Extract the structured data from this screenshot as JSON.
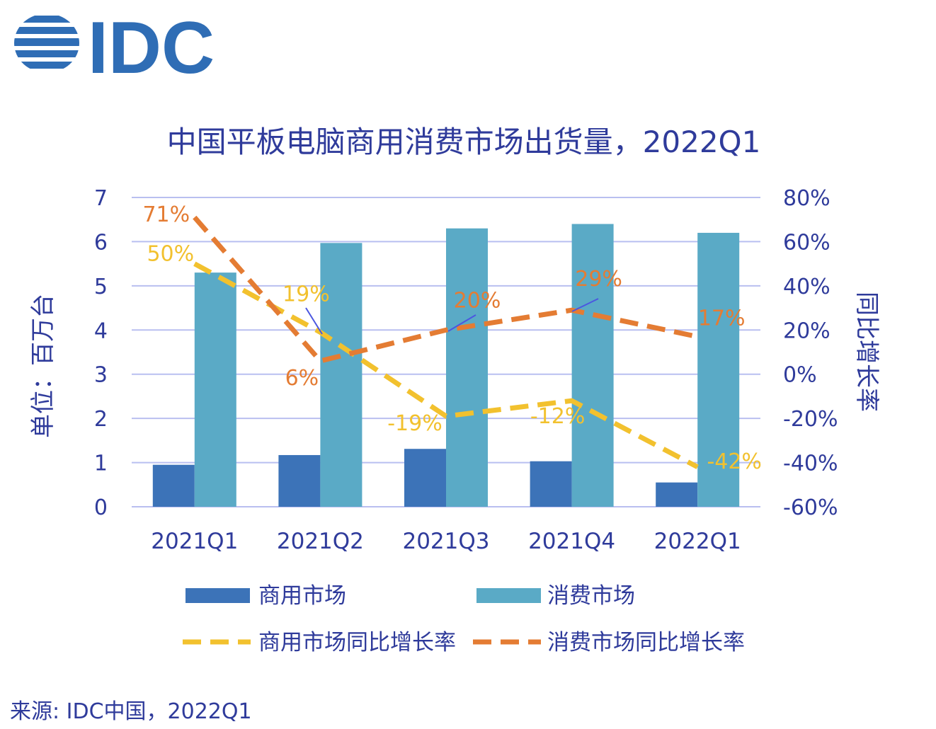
{
  "logo": {
    "text": "IDC",
    "color": "#2F6DB5"
  },
  "source": "来源: IDC中国，2022Q1",
  "colors": {
    "text": "#2F3B9B",
    "grid": "#B9BFF0",
    "commercial_bar": "#3C73B8",
    "consumer_bar": "#5AAAC6",
    "commercial_line": "#F2C12E",
    "consumer_line": "#E47C33",
    "leader": "#4B57E0"
  },
  "chart_data": {
    "type": "bar",
    "title": "中国平板电脑商用消费市场出货量，2022Q1",
    "categories": [
      "2021Q1",
      "2021Q2",
      "2021Q3",
      "2021Q4",
      "2022Q1"
    ],
    "ylabel": "单位：百万台",
    "ylim": [
      0,
      7
    ],
    "yticks": [
      "0",
      "1",
      "2",
      "3",
      "4",
      "5",
      "6",
      "7"
    ],
    "y2label": "同比增长率",
    "y2lim": [
      -60,
      80
    ],
    "y2ticks": [
      "-60%",
      "-40%",
      "-20%",
      "0%",
      "20%",
      "40%",
      "60%",
      "80%"
    ],
    "series": [
      {
        "name": "商用市场",
        "kind": "bar",
        "axis": "left",
        "values": [
          0.95,
          1.17,
          1.31,
          1.03,
          0.55
        ]
      },
      {
        "name": "消费市场",
        "kind": "bar",
        "axis": "left",
        "values": [
          5.3,
          5.97,
          6.3,
          6.4,
          6.2
        ]
      },
      {
        "name": "商用市场同比增长率",
        "kind": "line",
        "axis": "right",
        "values": [
          50,
          19,
          -19,
          -12,
          -42
        ],
        "labels": [
          "50%",
          "19%",
          "-19%",
          "-12%",
          "-42%"
        ]
      },
      {
        "name": "消费市场同比增长率",
        "kind": "line",
        "axis": "right",
        "values": [
          71,
          6,
          20,
          29,
          17
        ],
        "labels": [
          "71%",
          "6%",
          "20%",
          "29%",
          "17%"
        ]
      }
    ]
  }
}
